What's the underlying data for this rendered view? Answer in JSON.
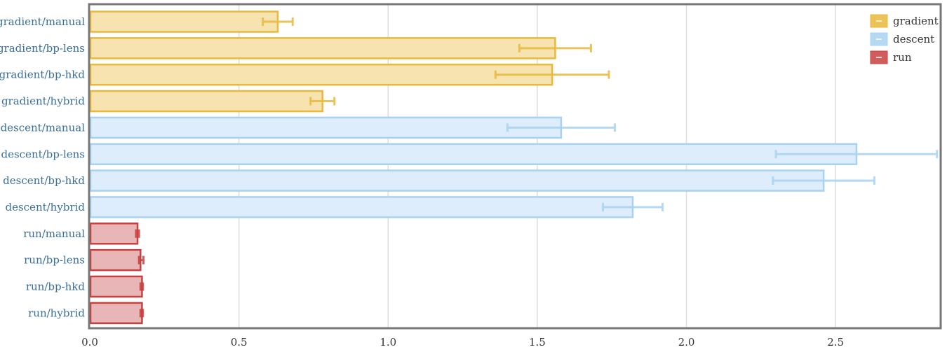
{
  "chart_data": {
    "type": "bar",
    "orientation": "horizontal",
    "title": "",
    "xlabel": "",
    "ylabel": "",
    "xlim": [
      0,
      2.85
    ],
    "xticks": [
      0.0,
      0.5,
      1.0,
      1.5,
      2.0,
      2.5
    ],
    "xtick_labels": [
      "0.0",
      "0.5",
      "1.0",
      "1.5",
      "2.0",
      "2.5"
    ],
    "grid": "vertical",
    "legend_position": "top-right",
    "series": [
      {
        "name": "gradient",
        "color": "#e9b93b",
        "fill": "#f7e3b0"
      },
      {
        "name": "descent",
        "color": "#a9d2f1",
        "fill": "#ddedfb"
      },
      {
        "name": "run",
        "color": "#c9403f",
        "fill": "#e8b6b6"
      }
    ],
    "bars": [
      {
        "label": "gradient/manual",
        "series": 0,
        "value": 0.63,
        "err_low": 0.58,
        "err_high": 0.68
      },
      {
        "label": "gradient/bp-lens",
        "series": 0,
        "value": 1.56,
        "err_low": 1.44,
        "err_high": 1.68
      },
      {
        "label": "gradient/bp-hkd",
        "series": 0,
        "value": 1.55,
        "err_low": 1.36,
        "err_high": 1.74
      },
      {
        "label": "gradient/hybrid",
        "series": 0,
        "value": 0.78,
        "err_low": 0.74,
        "err_high": 0.82
      },
      {
        "label": "descent/manual",
        "series": 1,
        "value": 1.58,
        "err_low": 1.4,
        "err_high": 1.76
      },
      {
        "label": "descent/bp-lens",
        "series": 1,
        "value": 2.57,
        "err_low": 2.3,
        "err_high": 2.84
      },
      {
        "label": "descent/bp-hkd",
        "series": 1,
        "value": 2.46,
        "err_low": 2.29,
        "err_high": 2.63
      },
      {
        "label": "descent/hybrid",
        "series": 1,
        "value": 1.82,
        "err_low": 1.72,
        "err_high": 1.92
      },
      {
        "label": "run/manual",
        "series": 2,
        "value": 0.16,
        "err_low": 0.155,
        "err_high": 0.165
      },
      {
        "label": "run/bp-lens",
        "series": 2,
        "value": 0.17,
        "err_low": 0.165,
        "err_high": 0.18
      },
      {
        "label": "run/bp-hkd",
        "series": 2,
        "value": 0.175,
        "err_low": 0.17,
        "err_high": 0.178
      },
      {
        "label": "run/hybrid",
        "series": 2,
        "value": 0.175,
        "err_low": 0.17,
        "err_high": 0.178
      }
    ]
  }
}
